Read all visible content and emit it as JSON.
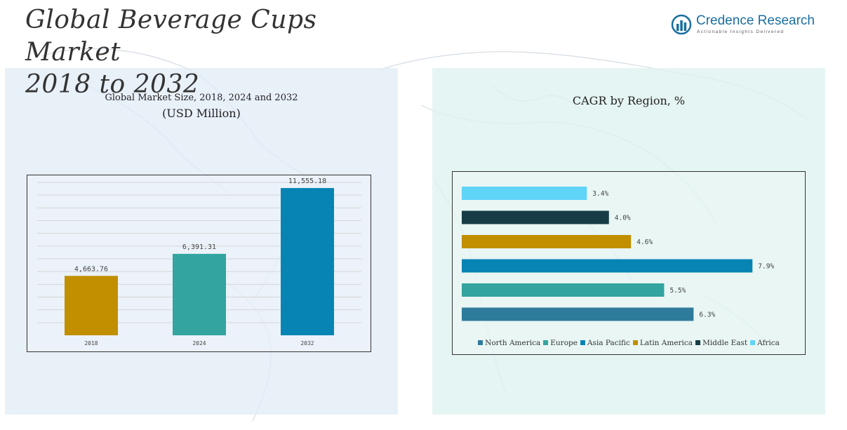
{
  "page": {
    "title": "Global Beverage Cups Market\n2018 to 2032"
  },
  "logo": {
    "name": "Credence Research",
    "tagline": "Actionable Insights Delivered",
    "icon": "bar-chart-globe-icon",
    "color": "#1a6fa0"
  },
  "colors": {
    "left_panel": "#e2ecf6",
    "right_panel": "#def2f0"
  },
  "chart_data": [
    {
      "type": "bar",
      "title": "Global Market Size, 2018, 2024 and 2032",
      "subtitle": "(USD Million)",
      "categories": [
        "2018",
        "2024",
        "2032"
      ],
      "values": [
        4663.76,
        6391.31,
        11555.18
      ],
      "value_labels": [
        "4,663.76",
        "6,391.31",
        "11,555.18"
      ],
      "colors": [
        "#c18f00",
        "#33a49f",
        "#0784b4"
      ],
      "ylim": [
        0,
        12000
      ],
      "grid": true,
      "legend": "none"
    },
    {
      "type": "bar",
      "orientation": "horizontal",
      "title": "CAGR by Region, %",
      "categories": [
        "Africa",
        "Middle East",
        "Latin America",
        "Asia Pacific",
        "Europe",
        "North America"
      ],
      "values": [
        3.4,
        4.0,
        4.6,
        7.9,
        5.5,
        6.3
      ],
      "value_labels": [
        "3.4%",
        "4.0%",
        "4.6%",
        "7.9%",
        "5.5%",
        "6.3%"
      ],
      "colors": [
        "#60d4f7",
        "#173c45",
        "#c18f00",
        "#0784b4",
        "#33a49f",
        "#2f7b9b"
      ],
      "xlim": [
        0,
        8.2
      ],
      "grid": false,
      "legend": "bottom",
      "legend_entries": [
        {
          "name": "North America",
          "color": "#2f7b9b"
        },
        {
          "name": "Europe",
          "color": "#33a49f"
        },
        {
          "name": "Asia Pacific",
          "color": "#0784b4"
        },
        {
          "name": "Latin America",
          "color": "#c18f00"
        },
        {
          "name": "Middle East",
          "color": "#173c45"
        },
        {
          "name": "Africa",
          "color": "#60d4f7"
        }
      ]
    }
  ]
}
